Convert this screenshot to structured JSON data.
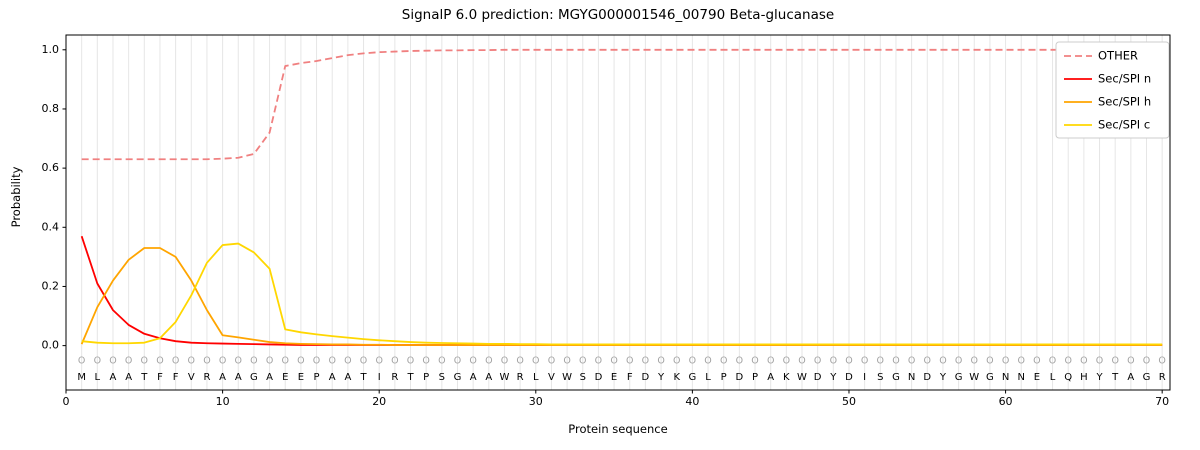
{
  "chart_data": {
    "type": "line",
    "title": "SignalP 6.0 prediction: MGYG000001546_00790 Beta-glucanase",
    "xlabel": "Protein sequence",
    "ylabel": "Probability",
    "xlim": [
      0,
      70.5
    ],
    "ylim": [
      -0.15,
      1.05
    ],
    "xticks": [
      0,
      10,
      20,
      30,
      40,
      50,
      60,
      70
    ],
    "yticks": [
      0.0,
      0.2,
      0.4,
      0.6,
      0.8,
      1.0
    ],
    "grid": "vertical-per-residue",
    "legend_position": "upper right",
    "sequence": "MLAATFFVRAAGAEEPAATIRTPSGAAWRLVWSDEFDYKGLPDPAKWDYDISGNDYGWGNNELQHYTAGR",
    "marker_symbol": "O",
    "series": [
      {
        "name": "OTHER",
        "color": "#f08080",
        "dashed": true,
        "values": [
          0.63,
          0.63,
          0.63,
          0.63,
          0.63,
          0.63,
          0.63,
          0.63,
          0.63,
          0.632,
          0.635,
          0.648,
          0.72,
          0.945,
          0.955,
          0.962,
          0.972,
          0.982,
          0.988,
          0.992,
          0.994,
          0.996,
          0.997,
          0.998,
          0.998,
          0.999,
          0.999,
          1.0,
          1.0,
          1.0,
          1.0,
          1.0,
          1.0,
          1.0,
          1.0,
          1.0,
          1.0,
          1.0,
          1.0,
          1.0,
          1.0,
          1.0,
          1.0,
          1.0,
          1.0,
          1.0,
          1.0,
          1.0,
          1.0,
          1.0,
          1.0,
          1.0,
          1.0,
          1.0,
          1.0,
          1.0,
          1.0,
          1.0,
          1.0,
          1.0,
          1.0,
          1.0,
          1.0,
          1.0,
          1.0,
          1.0,
          1.0,
          1.0,
          1.0,
          1.0
        ]
      },
      {
        "name": "Sec/SPI n",
        "color": "#ff0000",
        "dashed": false,
        "values": [
          0.37,
          0.21,
          0.12,
          0.07,
          0.04,
          0.025,
          0.015,
          0.01,
          0.008,
          0.007,
          0.006,
          0.005,
          0.004,
          0.003,
          0.002,
          0.002,
          0.002,
          0.002,
          0.002,
          0.002,
          0.002,
          0.002,
          0.002,
          0.002,
          0.002,
          0.002,
          0.002,
          0.002,
          0.002,
          0.002,
          0.002,
          0.002,
          0.002,
          0.002,
          0.002,
          0.002,
          0.002,
          0.002,
          0.002,
          0.002,
          0.002,
          0.002,
          0.002,
          0.002,
          0.002,
          0.002,
          0.002,
          0.002,
          0.002,
          0.002,
          0.002,
          0.002,
          0.002,
          0.002,
          0.002,
          0.002,
          0.002,
          0.002,
          0.002,
          0.002,
          0.002,
          0.002,
          0.002,
          0.002,
          0.002,
          0.002,
          0.002,
          0.002,
          0.002,
          0.002
        ]
      },
      {
        "name": "Sec/SPI h",
        "color": "#ffa500",
        "dashed": false,
        "values": [
          0.005,
          0.13,
          0.22,
          0.29,
          0.33,
          0.33,
          0.3,
          0.22,
          0.12,
          0.035,
          0.028,
          0.02,
          0.012,
          0.008,
          0.006,
          0.005,
          0.004,
          0.004,
          0.003,
          0.003,
          0.002,
          0.002,
          0.002,
          0.002,
          0.002,
          0.002,
          0.002,
          0.002,
          0.002,
          0.002,
          0.002,
          0.002,
          0.002,
          0.002,
          0.002,
          0.002,
          0.002,
          0.002,
          0.002,
          0.002,
          0.002,
          0.002,
          0.002,
          0.002,
          0.002,
          0.002,
          0.002,
          0.002,
          0.002,
          0.002,
          0.002,
          0.002,
          0.002,
          0.002,
          0.002,
          0.002,
          0.002,
          0.002,
          0.002,
          0.002,
          0.002,
          0.002,
          0.002,
          0.002,
          0.002,
          0.002,
          0.002,
          0.002,
          0.002,
          0.002
        ]
      },
      {
        "name": "Sec/SPI c",
        "color": "#ffd700",
        "dashed": false,
        "values": [
          0.015,
          0.01,
          0.008,
          0.008,
          0.01,
          0.025,
          0.08,
          0.17,
          0.28,
          0.34,
          0.345,
          0.315,
          0.26,
          0.055,
          0.045,
          0.038,
          0.032,
          0.027,
          0.022,
          0.018,
          0.015,
          0.012,
          0.01,
          0.009,
          0.008,
          0.007,
          0.006,
          0.006,
          0.005,
          0.005,
          0.004,
          0.004,
          0.004,
          0.004,
          0.004,
          0.004,
          0.004,
          0.004,
          0.004,
          0.004,
          0.004,
          0.004,
          0.004,
          0.004,
          0.004,
          0.004,
          0.004,
          0.004,
          0.004,
          0.004,
          0.004,
          0.004,
          0.004,
          0.004,
          0.004,
          0.004,
          0.004,
          0.004,
          0.004,
          0.004,
          0.004,
          0.004,
          0.004,
          0.004,
          0.004,
          0.004,
          0.004,
          0.004,
          0.004,
          0.004
        ]
      }
    ]
  }
}
